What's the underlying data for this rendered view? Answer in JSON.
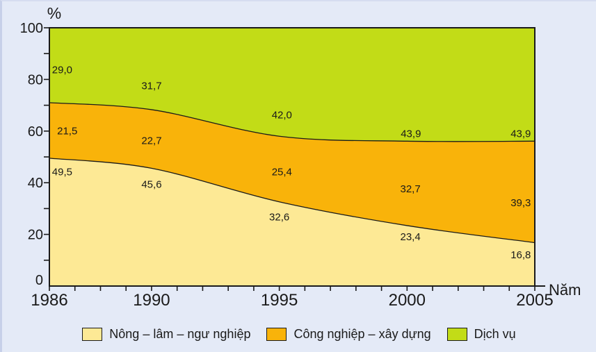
{
  "chart_data": {
    "type": "area",
    "stacked": true,
    "title": "",
    "xlabel": "Năm",
    "ylabel": "%",
    "x": [
      1986,
      1990,
      1995,
      2000,
      2005
    ],
    "x_range": [
      1986,
      2005
    ],
    "x_tick_labels": [
      "1986",
      "1990",
      "1995",
      "2000",
      "2005"
    ],
    "x_minor_tick_step": 1,
    "y_range": [
      0,
      100
    ],
    "y_tick_labels": [
      "0",
      "20",
      "40",
      "60",
      "80",
      "100"
    ],
    "y_major_tick_step": 20,
    "y_minor_tick_step": 10,
    "grid": false,
    "legend_position": "bottom",
    "line_color": "#1a1a1a",
    "series": [
      {
        "name": "Nông – lâm – ngư nghiệp",
        "color": "#fde995",
        "values": [
          49.5,
          45.6,
          32.6,
          23.4,
          16.8
        ],
        "point_labels": [
          {
            "text": "49,5",
            "x": 1986.5,
            "y": 44.2
          },
          {
            "text": "45,6",
            "x": 1990.0,
            "y": 39.4
          },
          {
            "text": "32,6",
            "x": 1995.0,
            "y": 26.7
          },
          {
            "text": "23,4",
            "x": 2000.13,
            "y": 19.1
          },
          {
            "text": "16,8",
            "x": 2004.45,
            "y": 12.1
          }
        ]
      },
      {
        "name": "Công nghiệp – xây dựng",
        "color": "#f9b30a",
        "values": [
          21.5,
          22.7,
          25.4,
          32.7,
          39.3
        ],
        "point_labels": [
          {
            "text": "21,5",
            "x": 1986.7,
            "y": 60.1
          },
          {
            "text": "22,7",
            "x": 1990.0,
            "y": 56.3
          },
          {
            "text": "25,4",
            "x": 1995.1,
            "y": 44.2
          },
          {
            "text": "32,7",
            "x": 2000.13,
            "y": 37.7
          },
          {
            "text": "39,3",
            "x": 2004.45,
            "y": 32.3
          }
        ]
      },
      {
        "name": "Dịch vụ",
        "color": "#c2dc17",
        "values": [
          29.0,
          31.7,
          42.0,
          43.9,
          43.9
        ],
        "point_labels": [
          {
            "text": "29,0",
            "x": 1986.5,
            "y": 83.8
          },
          {
            "text": "31,7",
            "x": 1990.0,
            "y": 77.6
          },
          {
            "text": "42,0",
            "x": 1995.1,
            "y": 66.3
          },
          {
            "text": "43,9",
            "x": 2000.15,
            "y": 59.0
          },
          {
            "text": "43,9",
            "x": 2004.45,
            "y": 59.0
          }
        ]
      }
    ]
  }
}
